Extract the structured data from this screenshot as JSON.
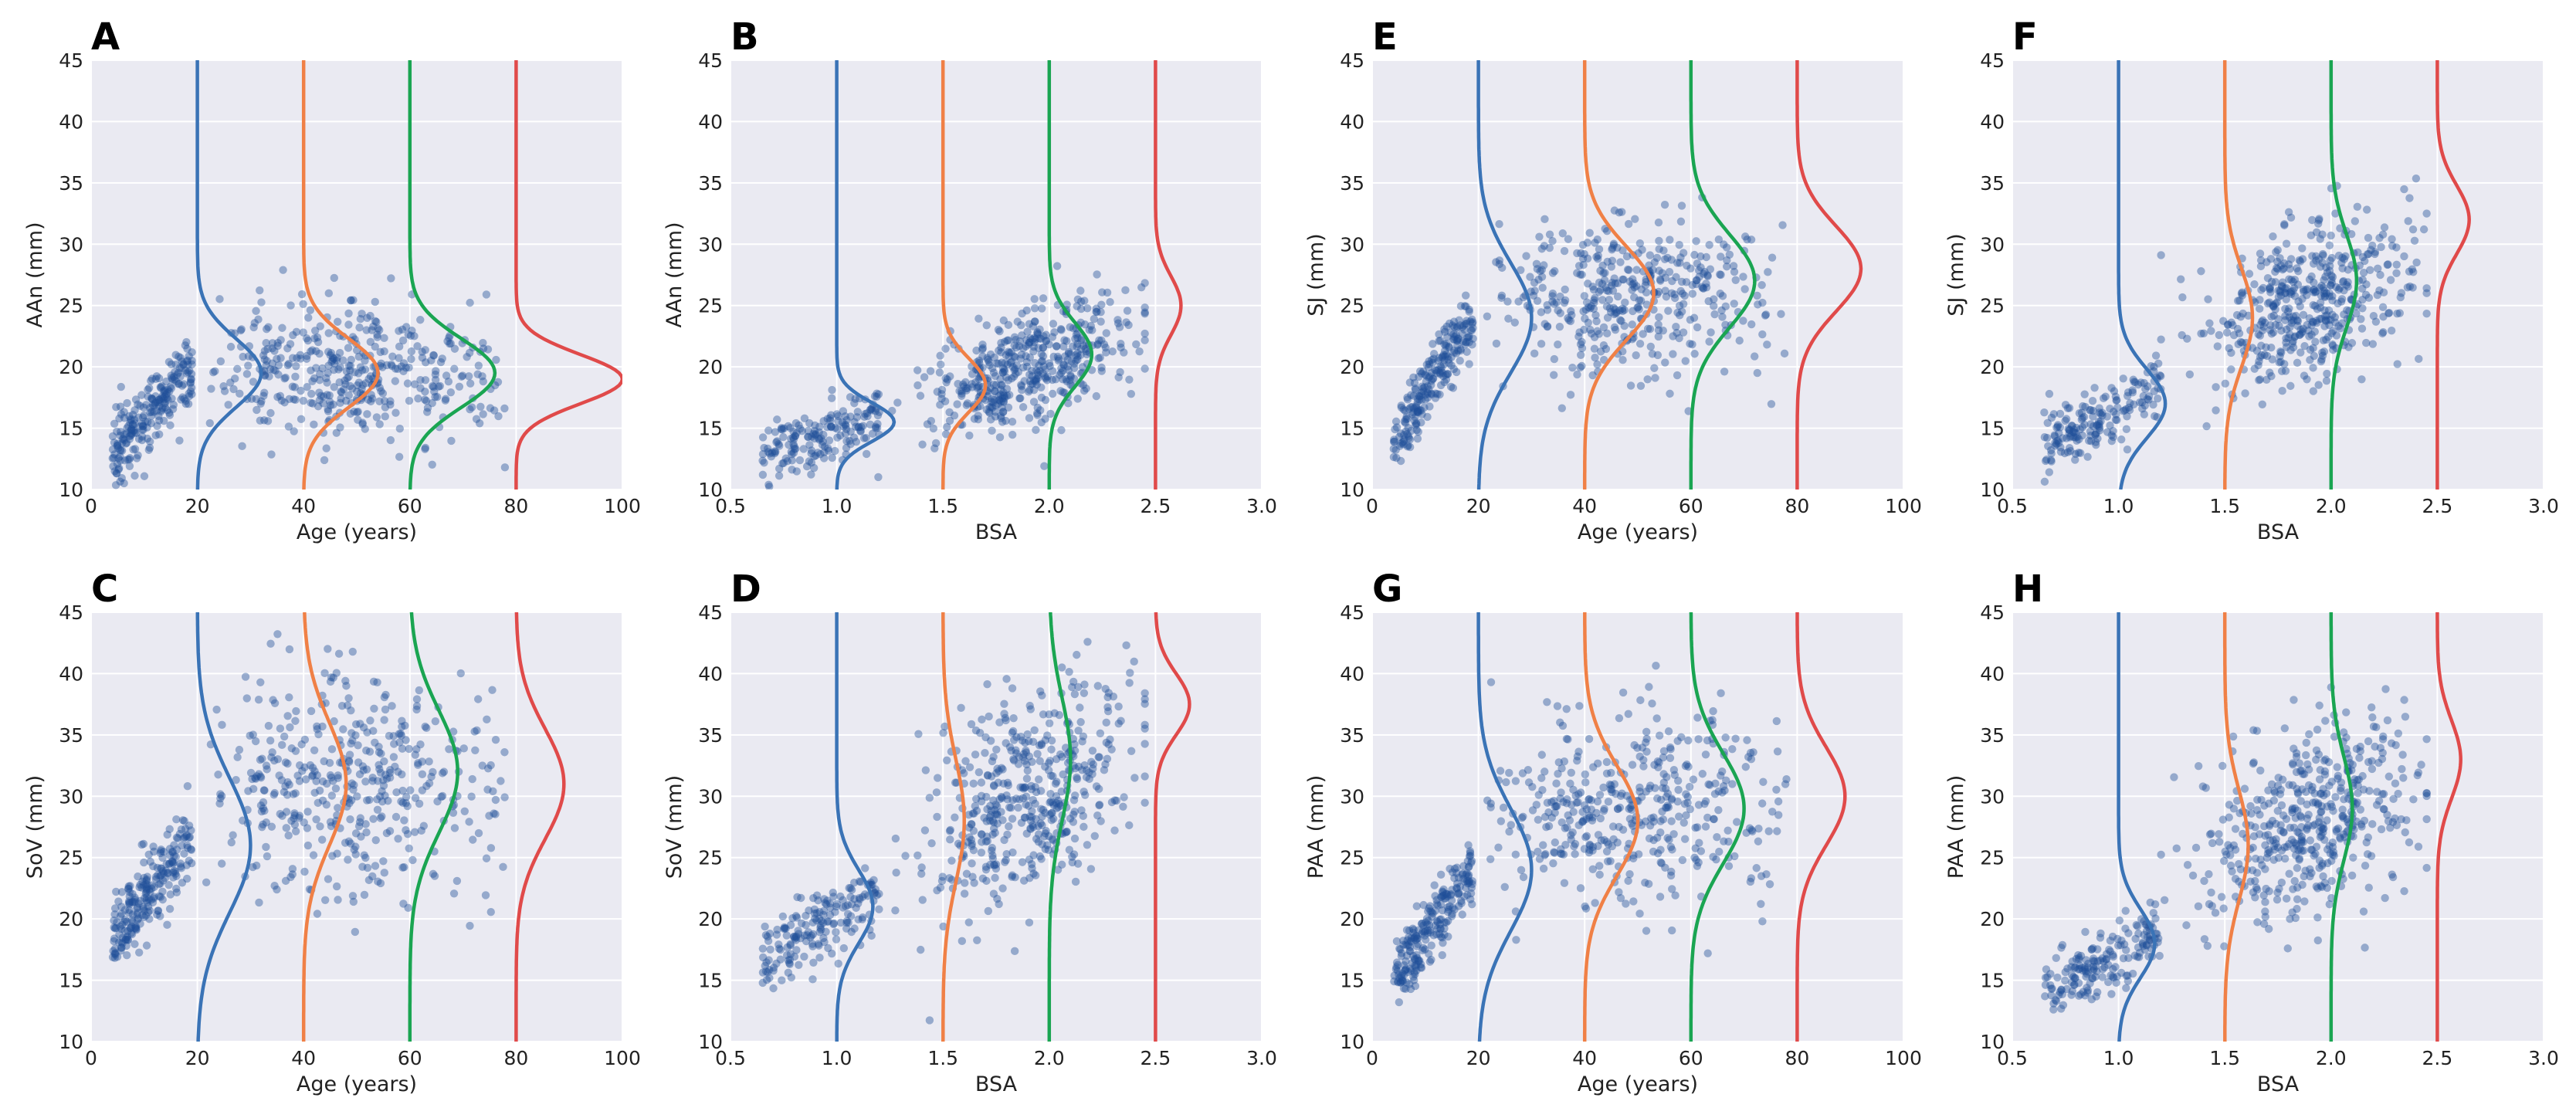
{
  "figure": {
    "colors": {
      "plot_bg": "#EAEAF2",
      "grid": "#FFFFFF",
      "points": "#1F4E99",
      "kde": [
        "#3A73B6",
        "#F08046",
        "#1AA552",
        "#E04A4A"
      ]
    },
    "panels": [
      {
        "letter": "A",
        "xlabel": "Age (years)",
        "ylabel": "AAn (mm)",
        "xticks": [
          "0",
          "20",
          "40",
          "60",
          "80",
          "100"
        ],
        "yticks": [
          "10",
          "15",
          "20",
          "25",
          "30",
          "35",
          "40",
          "45"
        ],
        "xlim": [
          0,
          100
        ],
        "ylim": [
          10,
          45
        ],
        "kde_baselines": [
          20,
          40,
          60,
          80
        ],
        "kde_peaks": [
          19.5,
          19.5,
          19.5,
          19.0
        ],
        "kde_widths": [
          2.8,
          2.8,
          2.8,
          2.0
        ],
        "kde_amplitudes": [
          12,
          14,
          16,
          20
        ],
        "scatter": {
          "child_x": [
            4,
            19
          ],
          "child_y": [
            13,
            20
          ],
          "adult_x": [
            20,
            78
          ],
          "adult_y": [
            19.5,
            0
          ],
          "adult_sd": 2.8,
          "n_child": 230,
          "n_adult": 420
        }
      },
      {
        "letter": "B",
        "xlabel": "BSA",
        "ylabel": "AAn (mm)",
        "xticks": [
          "0.5",
          "1.0",
          "1.5",
          "2.0",
          "2.5",
          "3.0"
        ],
        "yticks": [
          "10",
          "15",
          "20",
          "25",
          "30",
          "35",
          "40",
          "45"
        ],
        "xlim": [
          0.5,
          3.0
        ],
        "ylim": [
          10,
          45
        ],
        "kde_baselines": [
          1.0,
          1.5,
          2.0,
          2.5
        ],
        "kde_peaks": [
          15.5,
          18.5,
          21.0,
          25.0
        ],
        "kde_widths": [
          1.6,
          2.2,
          2.6,
          2.4
        ],
        "kde_amplitudes": [
          0.27,
          0.2,
          0.2,
          0.12
        ],
        "scatter": {
          "child_x": [
            0.65,
            1.2
          ],
          "child_y": [
            13,
            16
          ],
          "adult_x": [
            1.2,
            2.45
          ],
          "adult_y": [
            16,
            23
          ],
          "adult_sd": 2.3,
          "n_child": 180,
          "n_adult": 470
        }
      },
      {
        "letter": "E",
        "xlabel": "Age (years)",
        "ylabel": "SJ (mm)",
        "xticks": [
          "0",
          "20",
          "40",
          "60",
          "80",
          "100"
        ],
        "yticks": [
          "10",
          "15",
          "20",
          "25",
          "30",
          "35",
          "40",
          "45"
        ],
        "xlim": [
          0,
          100
        ],
        "ylim": [
          10,
          45
        ],
        "kde_baselines": [
          20,
          40,
          60,
          80
        ],
        "kde_peaks": [
          24.0,
          26.0,
          27.0,
          28.0
        ],
        "kde_widths": [
          4.5,
          3.8,
          3.8,
          3.5
        ],
        "kde_amplitudes": [
          10,
          13,
          12,
          12
        ],
        "scatter": {
          "child_x": [
            4,
            19
          ],
          "child_y": [
            14,
            24
          ],
          "adult_x": [
            20,
            78
          ],
          "adult_y": [
            26,
            0
          ],
          "adult_sd": 3.2,
          "n_child": 230,
          "n_adult": 420
        }
      },
      {
        "letter": "F",
        "xlabel": "BSA",
        "ylabel": "SJ (mm)",
        "xticks": [
          "0.5",
          "1.0",
          "1.5",
          "2.0",
          "2.5",
          "3.0"
        ],
        "yticks": [
          "10",
          "15",
          "20",
          "25",
          "30",
          "35",
          "40",
          "45"
        ],
        "xlim": [
          0.5,
          3.0
        ],
        "ylim": [
          10,
          45
        ],
        "kde_baselines": [
          1.0,
          1.5,
          2.0,
          2.5
        ],
        "kde_peaks": [
          17.0,
          24.0,
          27.0,
          32.0
        ],
        "kde_widths": [
          2.8,
          4.0,
          3.8,
          2.8
        ],
        "kde_amplitudes": [
          0.22,
          0.13,
          0.12,
          0.15
        ],
        "scatter": {
          "child_x": [
            0.65,
            1.2
          ],
          "child_y": [
            14,
            18
          ],
          "adult_x": [
            1.2,
            2.45
          ],
          "adult_y": [
            22,
            28
          ],
          "adult_sd": 3.3,
          "n_child": 180,
          "n_adult": 470
        }
      },
      {
        "letter": "C",
        "xlabel": "Age (years)",
        "ylabel": "SoV (mm)",
        "xticks": [
          "0",
          "20",
          "40",
          "60",
          "80",
          "100"
        ],
        "yticks": [
          "10",
          "15",
          "20",
          "25",
          "30",
          "35",
          "40",
          "45"
        ],
        "xlim": [
          0,
          100
        ],
        "ylim": [
          10,
          45
        ],
        "kde_baselines": [
          20,
          40,
          60,
          80
        ],
        "kde_peaks": [
          26.0,
          31.0,
          32.0,
          31.0
        ],
        "kde_widths": [
          5.5,
          5.0,
          5.0,
          4.5
        ],
        "kde_amplitudes": [
          10,
          8,
          9,
          9
        ],
        "scatter": {
          "child_x": [
            4,
            19
          ],
          "child_y": [
            18,
            27
          ],
          "adult_x": [
            20,
            78
          ],
          "adult_y": [
            31,
            0
          ],
          "adult_sd": 4.5,
          "n_child": 230,
          "n_adult": 420
        }
      },
      {
        "letter": "D",
        "xlabel": "BSA",
        "ylabel": "SoV (mm)",
        "xticks": [
          "0.5",
          "1.0",
          "1.5",
          "2.0",
          "2.5",
          "3.0"
        ],
        "yticks": [
          "10",
          "15",
          "20",
          "25",
          "30",
          "35",
          "40",
          "45"
        ],
        "xlim": [
          0.5,
          3.0
        ],
        "ylim": [
          10,
          45
        ],
        "kde_baselines": [
          1.0,
          1.5,
          2.0,
          2.5
        ],
        "kde_peaks": [
          21.0,
          28.0,
          33.0,
          37.5
        ],
        "kde_widths": [
          3.0,
          5.0,
          5.0,
          2.5
        ],
        "kde_amplitudes": [
          0.17,
          0.1,
          0.1,
          0.16
        ],
        "scatter": {
          "child_x": [
            0.65,
            1.2
          ],
          "child_y": [
            17,
            22
          ],
          "adult_x": [
            1.2,
            2.45
          ],
          "adult_y": [
            25,
            34
          ],
          "adult_sd": 4.2,
          "n_child": 180,
          "n_adult": 470
        }
      },
      {
        "letter": "G",
        "xlabel": "Age (years)",
        "ylabel": "PAA (mm)",
        "xticks": [
          "0",
          "20",
          "40",
          "60",
          "80",
          "100"
        ],
        "yticks": [
          "10",
          "15",
          "20",
          "25",
          "30",
          "35",
          "40",
          "45"
        ],
        "xlim": [
          0,
          100
        ],
        "ylim": [
          10,
          45
        ],
        "kde_baselines": [
          20,
          40,
          60,
          80
        ],
        "kde_peaks": [
          24.0,
          28.0,
          29.0,
          30.0
        ],
        "kde_widths": [
          5.0,
          4.5,
          4.5,
          4.0
        ],
        "kde_amplitudes": [
          10,
          10,
          10,
          9
        ],
        "scatter": {
          "child_x": [
            4,
            19
          ],
          "child_y": [
            15,
            24
          ],
          "adult_x": [
            20,
            78
          ],
          "adult_y": [
            29,
            0
          ],
          "adult_sd": 4.0,
          "n_child": 230,
          "n_adult": 420
        }
      },
      {
        "letter": "H",
        "xlabel": "BSA",
        "ylabel": "PAA (mm)",
        "xticks": [
          "0.5",
          "1.0",
          "1.5",
          "2.0",
          "2.5",
          "3.0"
        ],
        "yticks": [
          "10",
          "15",
          "20",
          "25",
          "30",
          "35",
          "40",
          "45"
        ],
        "xlim": [
          0.5,
          3.0
        ],
        "ylim": [
          10,
          45
        ],
        "kde_baselines": [
          1.0,
          1.5,
          2.0,
          2.5
        ],
        "kde_peaks": [
          18.0,
          26.0,
          29.0,
          33.0
        ],
        "kde_widths": [
          2.8,
          4.5,
          4.2,
          3.2
        ],
        "kde_amplitudes": [
          0.17,
          0.11,
          0.1,
          0.11
        ],
        "scatter": {
          "child_x": [
            0.65,
            1.2
          ],
          "child_y": [
            14,
            19
          ],
          "adult_x": [
            1.2,
            2.45
          ],
          "adult_y": [
            24,
            31
          ],
          "adult_sd": 4.0,
          "n_child": 180,
          "n_adult": 470
        }
      }
    ]
  },
  "chart_data": [
    {
      "type": "scatter",
      "panel": "A",
      "xlabel": "Age (years)",
      "ylabel": "AAn (mm)",
      "xlim": [
        0,
        100
      ],
      "ylim": [
        10,
        45
      ],
      "series_kde_x": [
        20,
        40,
        60,
        80
      ],
      "kde_modes_mm": [
        19.5,
        19.5,
        19.5,
        19.0
      ]
    },
    {
      "type": "scatter",
      "panel": "B",
      "xlabel": "BSA",
      "ylabel": "AAn (mm)",
      "xlim": [
        0.5,
        3.0
      ],
      "ylim": [
        10,
        45
      ],
      "series_kde_x": [
        1.0,
        1.5,
        2.0,
        2.5
      ],
      "kde_modes_mm": [
        15.5,
        18.5,
        21.0,
        25.0
      ]
    },
    {
      "type": "scatter",
      "panel": "E",
      "xlabel": "Age (years)",
      "ylabel": "SJ (mm)",
      "xlim": [
        0,
        100
      ],
      "ylim": [
        10,
        45
      ],
      "series_kde_x": [
        20,
        40,
        60,
        80
      ],
      "kde_modes_mm": [
        24.0,
        26.0,
        27.0,
        28.0
      ]
    },
    {
      "type": "scatter",
      "panel": "F",
      "xlabel": "BSA",
      "ylabel": "SJ (mm)",
      "xlim": [
        0.5,
        3.0
      ],
      "ylim": [
        10,
        45
      ],
      "series_kde_x": [
        1.0,
        1.5,
        2.0,
        2.5
      ],
      "kde_modes_mm": [
        17.0,
        24.0,
        27.0,
        32.0
      ]
    },
    {
      "type": "scatter",
      "panel": "C",
      "xlabel": "Age (years)",
      "ylabel": "SoV (mm)",
      "xlim": [
        0,
        100
      ],
      "ylim": [
        10,
        45
      ],
      "series_kde_x": [
        20,
        40,
        60,
        80
      ],
      "kde_modes_mm": [
        26.0,
        31.0,
        32.0,
        31.0
      ]
    },
    {
      "type": "scatter",
      "panel": "D",
      "xlabel": "BSA",
      "ylabel": "SoV (mm)",
      "xlim": [
        0.5,
        3.0
      ],
      "ylim": [
        10,
        45
      ],
      "series_kde_x": [
        1.0,
        1.5,
        2.0,
        2.5
      ],
      "kde_modes_mm": [
        21.0,
        28.0,
        33.0,
        37.5
      ]
    },
    {
      "type": "scatter",
      "panel": "G",
      "xlabel": "Age (years)",
      "ylabel": "PAA (mm)",
      "xlim": [
        0,
        100
      ],
      "ylim": [
        10,
        45
      ],
      "series_kde_x": [
        20,
        40,
        60,
        80
      ],
      "kde_modes_mm": [
        24.0,
        28.0,
        29.0,
        30.0
      ]
    },
    {
      "type": "scatter",
      "panel": "H",
      "xlabel": "BSA",
      "ylabel": "PAA (mm)",
      "xlim": [
        0.5,
        3.0
      ],
      "ylim": [
        10,
        45
      ],
      "series_kde_x": [
        1.0,
        1.5,
        2.0,
        2.5
      ],
      "kde_modes_mm": [
        18.0,
        26.0,
        29.0,
        33.0
      ]
    }
  ]
}
